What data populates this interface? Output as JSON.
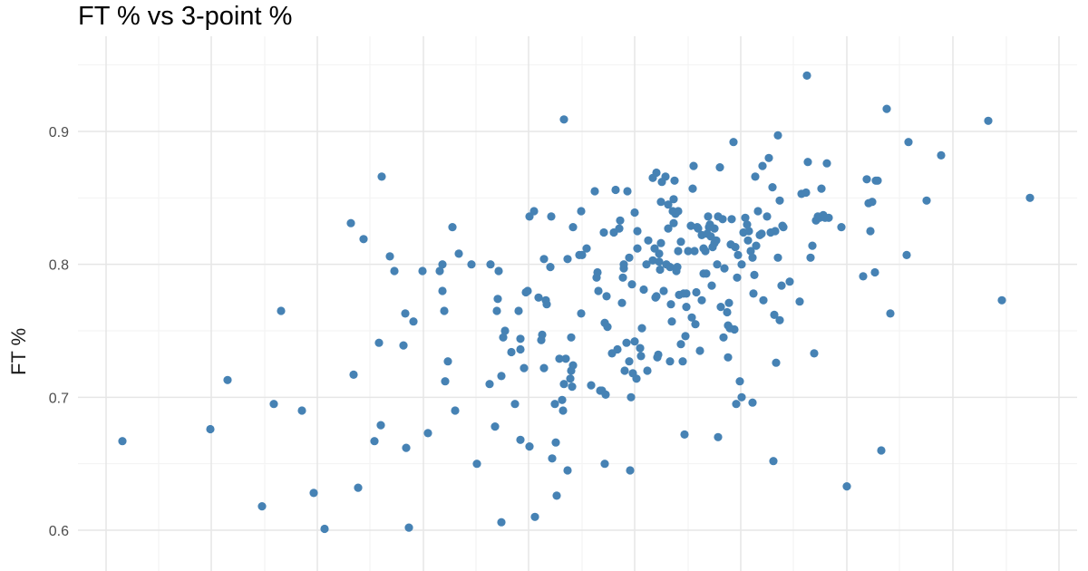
{
  "chart_data": {
    "type": "scatter",
    "title": "FT % vs 3-point %",
    "xlabel": "",
    "ylabel": "FT %",
    "ylim": [
      0.585,
      0.955
    ],
    "yticks": [
      0.6,
      0.7,
      0.8,
      0.9
    ],
    "ytick_labels": [
      "0.6",
      "0.7",
      "0.8",
      "0.9"
    ],
    "grid": true,
    "legend": "none",
    "point_color": "#4682b4",
    "points": [
      [
        135,
        0.667
      ],
      [
        232,
        0.676
      ],
      [
        251,
        0.713
      ],
      [
        289,
        0.618
      ],
      [
        302,
        0.695
      ],
      [
        310,
        0.765
      ],
      [
        333,
        0.69
      ],
      [
        346,
        0.628
      ],
      [
        358,
        0.601
      ],
      [
        387,
        0.831
      ],
      [
        390,
        0.717
      ],
      [
        395,
        0.632
      ],
      [
        401,
        0.819
      ],
      [
        413,
        0.667
      ],
      [
        418,
        0.741
      ],
      [
        420,
        0.679
      ],
      [
        421,
        0.866
      ],
      [
        430,
        0.806
      ],
      [
        435,
        0.795
      ],
      [
        445,
        0.739
      ],
      [
        447,
        0.763
      ],
      [
        448,
        0.662
      ],
      [
        451,
        0.602
      ],
      [
        456,
        0.757
      ],
      [
        466,
        0.795
      ],
      [
        472,
        0.673
      ],
      [
        485,
        0.795
      ],
      [
        488,
        0.8
      ],
      [
        488,
        0.78
      ],
      [
        490,
        0.765
      ],
      [
        491,
        0.712
      ],
      [
        494,
        0.727
      ],
      [
        499,
        0.828
      ],
      [
        502,
        0.69
      ],
      [
        506,
        0.808
      ],
      [
        520,
        0.8
      ],
      [
        526,
        0.65
      ],
      [
        540,
        0.71
      ],
      [
        541,
        0.8
      ],
      [
        546,
        0.678
      ],
      [
        548,
        0.765
      ],
      [
        549,
        0.774
      ],
      [
        550,
        0.795
      ],
      [
        553,
        0.606
      ],
      [
        553,
        0.716
      ],
      [
        555,
        0.745
      ],
      [
        557,
        0.75
      ],
      [
        564,
        0.734
      ],
      [
        568,
        0.695
      ],
      [
        572,
        0.765
      ],
      [
        574,
        0.736
      ],
      [
        574,
        0.744
      ],
      [
        574,
        0.668
      ],
      [
        578,
        0.722
      ],
      [
        580,
        0.779
      ],
      [
        582,
        0.78
      ],
      [
        584,
        0.663
      ],
      [
        584,
        0.836
      ],
      [
        589,
        0.84
      ],
      [
        590,
        0.61
      ],
      [
        594,
        0.775
      ],
      [
        597,
        0.743
      ],
      [
        598,
        0.747
      ],
      [
        600,
        0.804
      ],
      [
        600,
        0.722
      ],
      [
        602,
        0.773
      ],
      [
        603,
        0.77
      ],
      [
        607,
        0.798
      ],
      [
        608,
        0.836
      ],
      [
        609,
        0.654
      ],
      [
        612,
        0.695
      ],
      [
        613,
        0.666
      ],
      [
        614,
        0.626
      ],
      [
        617,
        0.729
      ],
      [
        620,
        0.698
      ],
      [
        621,
        0.69
      ],
      [
        622,
        0.909
      ],
      [
        622,
        0.71
      ],
      [
        624,
        0.729
      ],
      [
        626,
        0.645
      ],
      [
        626,
        0.804
      ],
      [
        629,
        0.714
      ],
      [
        630,
        0.745
      ],
      [
        630,
        0.72
      ],
      [
        631,
        0.708
      ],
      [
        632,
        0.828
      ],
      [
        632,
        0.724
      ],
      [
        639,
        0.807
      ],
      [
        641,
        0.84
      ],
      [
        641,
        0.763
      ],
      [
        642,
        0.807
      ],
      [
        647,
        0.812
      ],
      [
        652,
        0.709
      ],
      [
        656,
        0.855
      ],
      [
        658,
        0.79
      ],
      [
        659,
        0.794
      ],
      [
        660,
        0.78
      ],
      [
        662,
        0.705
      ],
      [
        664,
        0.705
      ],
      [
        666,
        0.824
      ],
      [
        667,
        0.65
      ],
      [
        667,
        0.756
      ],
      [
        668,
        0.702
      ],
      [
        669,
        0.776
      ],
      [
        670,
        0.753
      ],
      [
        675,
        0.733
      ],
      [
        677,
        0.824
      ],
      [
        679,
        0.856
      ],
      [
        681,
        0.736
      ],
      [
        683,
        0.827
      ],
      [
        684,
        0.833
      ],
      [
        686,
        0.771
      ],
      [
        687,
        0.79
      ],
      [
        688,
        0.797
      ],
      [
        688,
        0.8
      ],
      [
        689,
        0.72
      ],
      [
        691,
        0.741
      ],
      [
        692,
        0.855
      ],
      [
        694,
        0.727
      ],
      [
        694,
        0.805
      ],
      [
        695,
        0.645
      ],
      [
        696,
        0.7
      ],
      [
        697,
        0.785
      ],
      [
        698,
        0.718
      ],
      [
        700,
        0.742
      ],
      [
        700,
        0.839
      ],
      [
        702,
        0.714
      ],
      [
        703,
        0.825
      ],
      [
        703,
        0.812
      ],
      [
        706,
        0.737
      ],
      [
        707,
        0.731
      ],
      [
        708,
        0.752
      ],
      [
        710,
        0.781
      ],
      [
        713,
        0.8
      ],
      [
        714,
        0.72
      ],
      [
        715,
        0.818
      ],
      [
        720,
        0.803
      ],
      [
        720,
        0.865
      ],
      [
        722,
        0.812
      ],
      [
        723,
        0.775
      ],
      [
        724,
        0.776
      ],
      [
        724,
        0.869
      ],
      [
        725,
        0.73
      ],
      [
        726,
        0.732
      ],
      [
        727,
        0.802
      ],
      [
        727,
        0.808
      ],
      [
        728,
        0.796
      ],
      [
        729,
        0.847
      ],
      [
        729,
        0.816
      ],
      [
        730,
        0.862
      ],
      [
        732,
        0.78
      ],
      [
        734,
        0.866
      ],
      [
        735,
        0.8
      ],
      [
        737,
        0.845
      ],
      [
        737,
        0.827
      ],
      [
        739,
        0.727
      ],
      [
        739,
        0.798
      ],
      [
        740,
        0.77
      ],
      [
        741,
        0.757
      ],
      [
        742,
        0.84
      ],
      [
        743,
        0.831
      ],
      [
        743,
        0.849
      ],
      [
        744,
        0.863
      ],
      [
        745,
        0.838
      ],
      [
        746,
        0.795
      ],
      [
        747,
        0.798
      ],
      [
        748,
        0.84
      ],
      [
        748,
        0.81
      ],
      [
        749,
        0.777
      ],
      [
        751,
        0.817
      ],
      [
        751,
        0.74
      ],
      [
        753,
        0.727
      ],
      [
        754,
        0.778
      ],
      [
        755,
        0.672
      ],
      [
        756,
        0.746
      ],
      [
        757,
        0.768
      ],
      [
        757,
        0.778
      ],
      [
        759,
        0.81
      ],
      [
        762,
        0.829
      ],
      [
        763,
        0.76
      ],
      [
        764,
        0.857
      ],
      [
        765,
        0.874
      ],
      [
        766,
        0.81
      ],
      [
        767,
        0.755
      ],
      [
        768,
        0.779
      ],
      [
        769,
        0.828
      ],
      [
        770,
        0.827
      ],
      [
        772,
        0.735
      ],
      [
        774,
        0.822
      ],
      [
        774,
        0.773
      ],
      [
        776,
        0.812
      ],
      [
        776,
        0.793
      ],
      [
        778,
        0.81
      ],
      [
        779,
        0.793
      ],
      [
        780,
        0.823
      ],
      [
        781,
        0.836
      ],
      [
        782,
        0.828
      ],
      [
        783,
        0.83
      ],
      [
        784,
        0.821
      ],
      [
        785,
        0.784
      ],
      [
        786,
        0.813
      ],
      [
        788,
        0.827
      ],
      [
        788,
        0.816
      ],
      [
        790,
        0.818
      ],
      [
        791,
        0.8
      ],
      [
        792,
        0.67
      ],
      [
        792,
        0.836
      ],
      [
        794,
        0.873
      ],
      [
        795,
        0.768
      ],
      [
        797,
        0.834
      ],
      [
        798,
        0.745
      ],
      [
        799,
        0.797
      ],
      [
        802,
        0.764
      ],
      [
        803,
        0.73
      ],
      [
        803,
        0.754
      ],
      [
        804,
        0.771
      ],
      [
        805,
        0.752
      ],
      [
        806,
        0.815
      ],
      [
        807,
        0.834
      ],
      [
        809,
        0.892
      ],
      [
        810,
        0.751
      ],
      [
        811,
        0.813
      ],
      [
        812,
        0.695
      ],
      [
        813,
        0.79
      ],
      [
        814,
        0.807
      ],
      [
        816,
        0.712
      ],
      [
        818,
        0.7
      ],
      [
        818,
        0.8
      ],
      [
        820,
        0.824
      ],
      [
        822,
        0.835
      ],
      [
        824,
        0.83
      ],
      [
        825,
        0.818
      ],
      [
        826,
        0.825
      ],
      [
        828,
        0.81
      ],
      [
        830,
        0.696
      ],
      [
        830,
        0.805
      ],
      [
        831,
        0.778
      ],
      [
        832,
        0.792
      ],
      [
        833,
        0.866
      ],
      [
        834,
        0.814
      ],
      [
        836,
        0.84
      ],
      [
        838,
        0.822
      ],
      [
        840,
        0.823
      ],
      [
        841,
        0.874
      ],
      [
        842,
        0.773
      ],
      [
        846,
        0.836
      ],
      [
        848,
        0.88
      ],
      [
        850,
        0.824
      ],
      [
        852,
        0.858
      ],
      [
        853,
        0.652
      ],
      [
        854,
        0.762
      ],
      [
        855,
        0.825
      ],
      [
        856,
        0.726
      ],
      [
        858,
        0.897
      ],
      [
        858,
        0.805
      ],
      [
        860,
        0.758
      ],
      [
        860,
        0.848
      ],
      [
        862,
        0.784
      ],
      [
        863,
        0.829
      ],
      [
        864,
        0.828
      ],
      [
        871,
        0.787
      ],
      [
        882,
        0.772
      ],
      [
        884,
        0.853
      ],
      [
        889,
        0.854
      ],
      [
        890,
        0.942
      ],
      [
        891,
        0.877
      ],
      [
        894,
        0.805
      ],
      [
        896,
        0.814
      ],
      [
        898,
        0.733
      ],
      [
        900,
        0.833
      ],
      [
        902,
        0.836
      ],
      [
        904,
        0.835
      ],
      [
        906,
        0.857
      ],
      [
        908,
        0.837
      ],
      [
        910,
        0.835
      ],
      [
        912,
        0.876
      ],
      [
        914,
        0.835
      ],
      [
        928,
        0.828
      ],
      [
        934,
        0.633
      ],
      [
        952,
        0.791
      ],
      [
        956,
        0.864
      ],
      [
        958,
        0.846
      ],
      [
        960,
        0.825
      ],
      [
        962,
        0.847
      ],
      [
        965,
        0.794
      ],
      [
        966,
        0.863
      ],
      [
        968,
        0.863
      ],
      [
        972,
        0.66
      ],
      [
        978,
        0.917
      ],
      [
        982,
        0.763
      ],
      [
        1000,
        0.807
      ],
      [
        1002,
        0.892
      ],
      [
        1022,
        0.848
      ],
      [
        1038,
        0.882
      ],
      [
        1090,
        0.908
      ],
      [
        1105,
        0.773
      ],
      [
        1136,
        0.85
      ]
    ]
  }
}
